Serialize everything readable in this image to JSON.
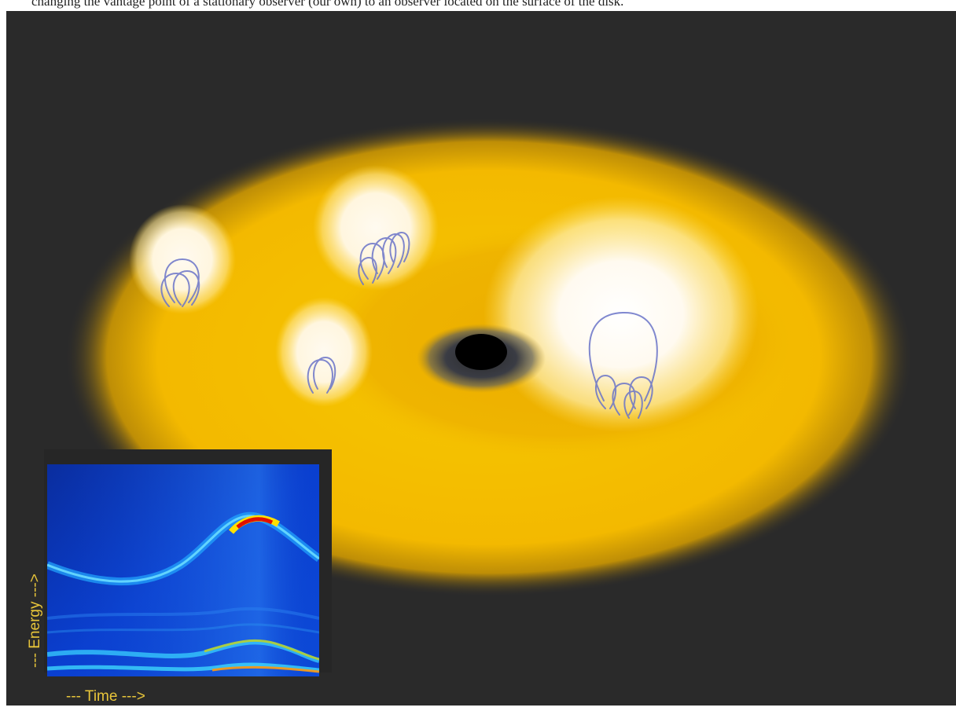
{
  "caption": "changing the vantage point of a stationary observer (our own) to an observer located on the surface of the disk.",
  "inset": {
    "xlabel": "--- Time --->",
    "ylabel": "--- Energy --->"
  },
  "colors": {
    "background": "#2a2a2a",
    "disk": "#f5c400",
    "hotspot": "#fff8e8",
    "loops": "#6a74c8",
    "axis_label": "#e8c53a"
  }
}
